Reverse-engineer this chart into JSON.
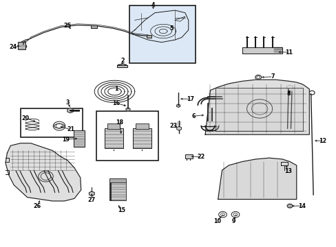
{
  "bg_color": "#ffffff",
  "fig_width": 4.89,
  "fig_height": 3.6,
  "dpi": 100,
  "line_color": "#1a1a1a",
  "box_bg": "#e8eef5",
  "lw": 0.7,
  "label_positions": {
    "1": [
      0.345,
      0.615,
      0.345,
      0.64
    ],
    "2": [
      0.365,
      0.735,
      0.365,
      0.755
    ],
    "3": [
      0.215,
      0.565,
      0.2,
      0.585
    ],
    "4": [
      0.455,
      0.965,
      0.455,
      0.98
    ],
    "5": [
      0.51,
      0.9,
      0.51,
      0.885
    ],
    "6": [
      0.6,
      0.53,
      0.575,
      0.53
    ],
    "7": [
      0.775,
      0.69,
      0.812,
      0.69
    ],
    "8": [
      0.858,
      0.6,
      0.858,
      0.62
    ],
    "9": [
      0.695,
      0.125,
      0.695,
      0.102
    ],
    "10": [
      0.66,
      0.125,
      0.645,
      0.102
    ],
    "11": [
      0.82,
      0.79,
      0.86,
      0.79
    ],
    "12": [
      0.93,
      0.43,
      0.96,
      0.43
    ],
    "13": [
      0.845,
      0.325,
      0.858,
      0.305
    ],
    "14": [
      0.868,
      0.165,
      0.898,
      0.165
    ],
    "15": [
      0.36,
      0.17,
      0.36,
      0.148
    ],
    "16": [
      0.375,
      0.57,
      0.345,
      0.582
    ],
    "17": [
      0.53,
      0.6,
      0.565,
      0.6
    ],
    "18": [
      0.38,
      0.49,
      0.355,
      0.505
    ],
    "19": [
      0.228,
      0.435,
      0.195,
      0.435
    ],
    "20": [
      0.108,
      0.522,
      0.075,
      0.522
    ],
    "21": [
      0.172,
      0.49,
      0.21,
      0.475
    ],
    "22": [
      0.565,
      0.365,
      0.598,
      0.365
    ],
    "23": [
      0.535,
      0.48,
      0.515,
      0.49
    ],
    "24": [
      0.065,
      0.81,
      0.038,
      0.81
    ],
    "25": [
      0.215,
      0.878,
      0.2,
      0.896
    ],
    "26": [
      0.12,
      0.188,
      0.11,
      0.165
    ],
    "27": [
      0.272,
      0.215,
      0.272,
      0.19
    ]
  }
}
